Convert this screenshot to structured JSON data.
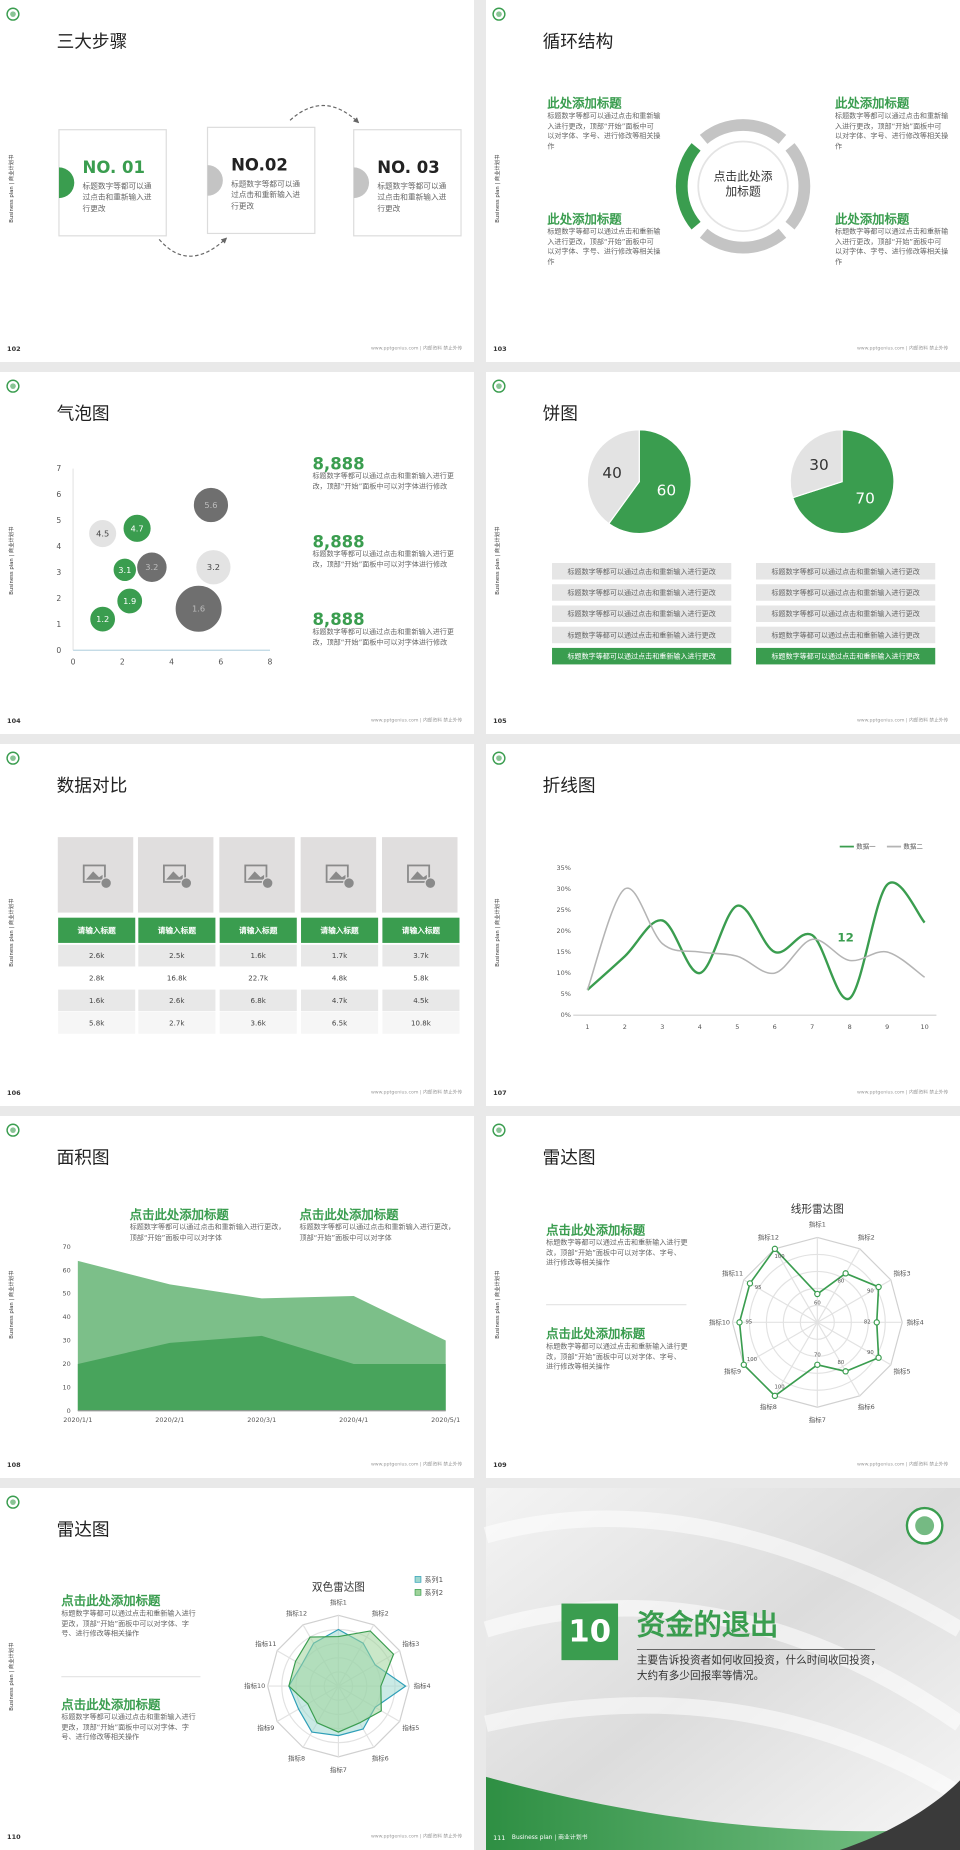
{
  "side_label": "Business plan | 商业计划书",
  "footer": "www.pptgenius.com | 内部资料 禁止外传",
  "slides": [
    {
      "page": "102",
      "title": "三大步骤",
      "steps": [
        {
          "label": "NO. 01",
          "text": "标题数字等都可以通过点击和重新输入进行更改"
        },
        {
          "label": "NO.02",
          "text": "标题数字等都可以通过点击和重新输入进行更改"
        },
        {
          "label": "NO. 03",
          "text": "标题数字等都可以通过点击和重新输入进行更改"
        }
      ]
    },
    {
      "page": "103",
      "title": "循环结构",
      "center": "点击此处添加标题",
      "items": [
        {
          "heading": "此处添加标题",
          "text": "标题数字等都可以通过点击和重新输入进行更改，顶部“开始”面板中可以对字体、字号、进行修改等相关操作"
        },
        {
          "heading": "此处添加标题",
          "text": "标题数字等都可以通过点击和重新输入进行更改，顶部“开始”面板中可以对字体、字号、进行修改等相关操作"
        },
        {
          "heading": "此处添加标题",
          "text": "标题数字等都可以通过点击和重新输入进行更改，顶部“开始”面板中可以对字体、字号、进行修改等相关操作"
        },
        {
          "heading": "此处添加标题",
          "text": "标题数字等都可以通过点击和重新输入进行更改，顶部“开始”面板中可以对字体、字号、进行修改等相关操作"
        }
      ]
    },
    {
      "page": "104",
      "title": "气泡图",
      "chart": {
        "type": "bubble",
        "xlim": [
          0,
          8
        ],
        "xticks": [
          0,
          2,
          4,
          6,
          8
        ],
        "ylim": [
          0,
          7
        ],
        "yticks": [
          0,
          1,
          2,
          3,
          4,
          5,
          6,
          7
        ],
        "series": [
          {
            "color": "#3a9d4f",
            "label_color": "#ffffff",
            "x": [
              2.6,
              2.1,
              2.3,
              1.2
            ],
            "values": [
              4.7,
              3.1,
              1.9,
              1.2
            ],
            "sizes": [
              12,
              10,
              11,
              11
            ]
          },
          {
            "color": "#e3e3e3",
            "label_color": "#444444",
            "x": [
              1.2,
              5.7
            ],
            "values": [
              4.5,
              3.2
            ],
            "sizes": [
              12,
              15
            ]
          },
          {
            "color": "#6f6f6f",
            "label_color": "#bdbdbd",
            "x": [
              5.6,
              3.2,
              5.1
            ],
            "values": [
              5.6,
              3.2,
              1.6
            ],
            "sizes": [
              15,
              13,
              20
            ]
          }
        ]
      },
      "stats": [
        {
          "value": "8,888",
          "text": "标题数字等都可以通过点击和重新输入进行更改，顶部“开始”面板中可以对字体进行修改"
        },
        {
          "value": "8,888",
          "text": "标题数字等都可以通过点击和重新输入进行更改，顶部“开始”面板中可以对字体进行修改"
        },
        {
          "value": "8,888",
          "text": "标题数字等都可以通过点击和重新输入进行更改，顶部“开始”面板中可以对字体进行修改"
        }
      ]
    },
    {
      "page": "105",
      "title": "饼图",
      "pies": [
        {
          "type": "pie",
          "values": [
            60,
            40
          ],
          "colors": [
            "#3a9d4f",
            "#e3e3e3"
          ],
          "rows": [
            "标题数字等都可以通过点击和重新输入进行更改",
            "标题数字等都可以通过点击和重新输入进行更改",
            "标题数字等都可以通过点击和重新输入进行更改",
            "标题数字等都可以通过点击和重新输入进行更改",
            "标题数字等都可以通过点击和重新输入进行更改"
          ]
        },
        {
          "type": "pie",
          "values": [
            70,
            30
          ],
          "colors": [
            "#3a9d4f",
            "#e3e3e3"
          ],
          "rows": [
            "标题数字等都可以通过点击和重新输入进行更改",
            "标题数字等都可以通过点击和重新输入进行更改",
            "标题数字等都可以通过点击和重新输入进行更改",
            "标题数字等都可以通过点击和重新输入进行更改",
            "标题数字等都可以通过点击和重新输入进行更改"
          ]
        }
      ]
    },
    {
      "page": "106",
      "title": "数据对比",
      "table": {
        "header": [
          "请输入标题",
          "请输入标题",
          "请输入标题",
          "请输入标题",
          "请输入标题"
        ],
        "rows": [
          [
            "2.6k",
            "2.5k",
            "1.6k",
            "1.7k",
            "3.7k"
          ],
          [
            "2.8k",
            "16.8k",
            "22.7k",
            "4.8k",
            "5.8k"
          ],
          [
            "1.6k",
            "2.6k",
            "6.8k",
            "4.7k",
            "4.5k"
          ],
          [
            "5.8k",
            "2.7k",
            "3.6k",
            "6.5k",
            "10.8k"
          ]
        ]
      }
    },
    {
      "page": "107",
      "title": "折线图",
      "chart": {
        "type": "line",
        "x": [
          1,
          2,
          3,
          4,
          5,
          6,
          7,
          8,
          9,
          10
        ],
        "xlim": [
          1,
          10
        ],
        "xticks": [
          1,
          2,
          3,
          4,
          5,
          6,
          7,
          8,
          9,
          10
        ],
        "ylim": [
          0,
          35
        ],
        "yticks": [
          {
            "value": 0,
            "label": "0%"
          },
          {
            "value": 5,
            "label": "5%"
          },
          {
            "value": 10,
            "label": "10%"
          },
          {
            "value": 15,
            "label": "15%"
          },
          {
            "value": 20,
            "label": "20%"
          },
          {
            "value": 25,
            "label": "25%"
          },
          {
            "value": 30,
            "label": "30%"
          },
          {
            "value": 35,
            "label": "35%"
          }
        ],
        "legend": "top-right",
        "annotation": "12",
        "series": [
          {
            "name": "数据一",
            "color": "#3a9d4f",
            "values": [
              6,
              14,
              22.5,
              10,
              26,
              15,
              19,
              4,
              31,
              22
            ]
          },
          {
            "name": "数据二",
            "color": "#b4b4b4",
            "values": [
              6,
              30,
              17,
              15,
              14,
              10,
              18,
              13,
              15,
              9
            ]
          }
        ]
      }
    },
    {
      "page": "108",
      "title": "面积图",
      "items": [
        {
          "heading": "点击此处添加标题",
          "text": "标题数字等都可以通过点击和重新输入进行更改，顶部“开始”面板中可以对字体"
        },
        {
          "heading": "点击此处添加标题",
          "text": "标题数字等都可以通过点击和重新输入进行更改，顶部“开始”面板中可以对字体"
        }
      ],
      "chart": {
        "type": "area",
        "categories": [
          "2020/1/1",
          "2020/2/1",
          "2020/3/1",
          "2020/4/1",
          "2020/5/1"
        ],
        "ylim": [
          0,
          70
        ],
        "yticks": [
          0,
          10,
          20,
          30,
          40,
          50,
          60,
          70
        ],
        "series": [
          {
            "color": "#7cbf89",
            "values": [
              64,
              54,
              48,
              49,
              30
            ]
          },
          {
            "color": "#48a45c",
            "values": [
              20,
              29,
              32,
              20,
              20
            ]
          }
        ]
      }
    },
    {
      "page": "109",
      "title": "雷达图",
      "items": [
        {
          "heading": "点击此处添加标题",
          "text": "标题数字等都可以通过点击和重新输入进行更改，顶部“开始”面板中可以对字体、字号、进行修改等相关操作"
        },
        {
          "heading": "点击此处添加标题",
          "text": "标题数字等都可以通过点击和重新输入进行更改，顶部“开始”面板中可以对字体、字号、进行修改等相关操作"
        }
      ],
      "chart": {
        "type": "radar",
        "title": "线形雷达图",
        "rlim": [
          40,
          100
        ],
        "data_labels": true,
        "categories": [
          "指标1",
          "指标2",
          "指标3",
          "指标4",
          "指标5",
          "指标6",
          "指标7",
          "指标8",
          "指标9",
          "指标10",
          "指标11",
          "指标12"
        ],
        "series": [
          {
            "color": "#3a9d4f",
            "values": [
              60,
              80,
              90,
              82,
              90,
              80,
              70,
              100,
              100,
              95,
              95,
              100
            ]
          }
        ]
      }
    },
    {
      "page": "110",
      "title": "雷达图",
      "items": [
        {
          "heading": "点击此处添加标题",
          "text": "标题数字等都可以通过点击和重新输入进行更改，顶部“开始”面板中可以对字体、字号、进行修改等相关操作"
        },
        {
          "heading": "点击此处添加标题",
          "text": "标题数字等都可以通过点击和重新输入进行更改，顶部“开始”面板中可以对字体、字号、进行修改等相关操作"
        }
      ],
      "chart": {
        "type": "radar",
        "title": "双色雷达图",
        "rlim": [
          0,
          100
        ],
        "legend": "top-right",
        "categories": [
          "指标1",
          "指标2",
          "指标3",
          "指标4",
          "指标5",
          "指标6",
          "指标7",
          "指标8",
          "指标9",
          "指标10",
          "指标11",
          "指标12"
        ],
        "series": [
          {
            "name": "系列1",
            "color": "#2f9fb8",
            "fill": "#9fd8cf",
            "values": [
              80,
              70,
              60,
              95,
              60,
              70,
              70,
              75,
              65,
              70,
              60,
              70
            ]
          },
          {
            "name": "系列2",
            "color": "#3a9d4f",
            "fill": "#9fd39a",
            "values": [
              70,
              90,
              90,
              60,
              70,
              60,
              65,
              60,
              50,
              70,
              70,
              80
            ]
          }
        ]
      }
    },
    {
      "page": "111",
      "number": "10",
      "title": "资金的退出",
      "text": "主要告诉投资者如何收回投资，什么时间收回投资，大约有多少回报率等情况。"
    }
  ]
}
